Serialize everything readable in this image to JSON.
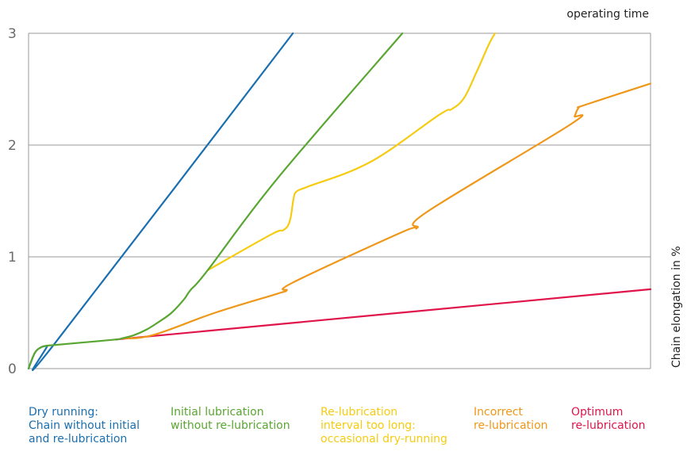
{
  "chart_data": {
    "type": "line",
    "title": "",
    "xlabel": "operating time",
    "ylabel": "Chain elongation in %",
    "ylim": [
      0,
      3
    ],
    "xlim": [
      0,
      100
    ],
    "grid": true,
    "yticks": [
      "0",
      "1",
      "2",
      "3"
    ],
    "series": [
      {
        "name": "Dry running:\nChain without initial\nand re-lubrication",
        "color": "#1a6fb0",
        "x": [
          0,
          1,
          2,
          3,
          4,
          42.5
        ],
        "y": [
          0,
          0.14,
          0.19,
          0.205,
          0.21,
          3.0
        ]
      },
      {
        "name": "Initial lubrication\nwithout re-lubrication",
        "color": "#5aa632",
        "x": [
          0,
          1,
          2,
          3,
          4,
          8,
          14,
          15,
          17,
          19,
          21,
          23,
          25,
          26,
          28.8,
          40,
          60.1
        ],
        "y": [
          0,
          0.14,
          0.19,
          0.205,
          0.21,
          0.23,
          0.26,
          0.27,
          0.3,
          0.35,
          0.42,
          0.5,
          0.62,
          0.7,
          0.88,
          1.7,
          3.0
        ]
      },
      {
        "name": "Re-lubrication\ninterval too long:\noccasional dry-running",
        "color": "#f5cc12",
        "x": [
          28.8,
          39,
          41,
          42,
          42.6,
          43,
          44,
          45,
          55,
          66,
          68,
          70,
          72,
          74,
          75
        ],
        "y": [
          0.88,
          1.2,
          1.24,
          1.32,
          1.52,
          1.58,
          1.61,
          1.63,
          1.85,
          2.27,
          2.32,
          2.42,
          2.65,
          2.9,
          3.0
        ]
      },
      {
        "name": "Incorrect\nre-lubrication",
        "color": "#ef9718",
        "x": [
          15,
          20,
          30,
          40,
          41.5,
          42.5,
          60,
          62.5,
          64,
          87,
          87.8,
          88.4,
          89.5,
          100
        ],
        "y": [
          0.27,
          0.3,
          0.5,
          0.67,
          0.7,
          0.77,
          1.22,
          1.26,
          1.4,
          2.18,
          2.26,
          2.33,
          2.36,
          2.55
        ]
      },
      {
        "name": "Optimum\nre-lubrication",
        "color": "#e0144a",
        "x": [
          14,
          100
        ],
        "y": [
          0.26,
          0.71
        ]
      }
    ]
  }
}
